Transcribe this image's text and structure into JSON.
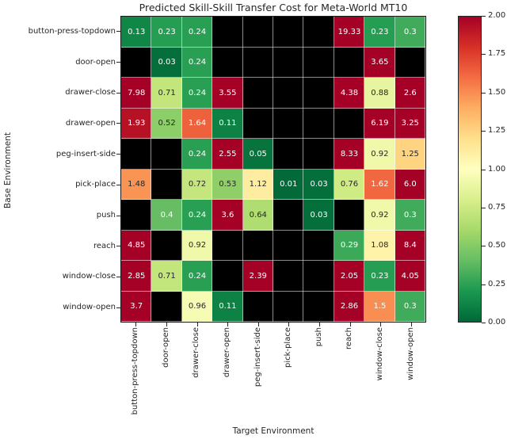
{
  "chart_data": {
    "type": "heatmap",
    "title": "Predicted Skill-Skill Transfer Cost for Meta-World MT10",
    "xlabel": "Target Environment",
    "ylabel": "Base Environment",
    "rows": [
      "button-press-topdown",
      "door-open",
      "drawer-close",
      "drawer-open",
      "peg-insert-side",
      "pick-place",
      "push",
      "reach",
      "window-close",
      "window-open"
    ],
    "columns": [
      "button-press-topdown",
      "door-open",
      "drawer-close",
      "drawer-open",
      "peg-insert-side",
      "pick-place",
      "push",
      "reach",
      "window-close",
      "window-open"
    ],
    "values": [
      [
        0.13,
        0.23,
        0.24,
        null,
        null,
        null,
        null,
        19.33,
        0.23,
        0.3
      ],
      [
        null,
        0.03,
        0.24,
        null,
        null,
        null,
        null,
        null,
        3.65,
        null
      ],
      [
        7.98,
        0.71,
        0.24,
        3.55,
        null,
        null,
        null,
        4.38,
        0.88,
        2.6
      ],
      [
        1.93,
        0.52,
        1.64,
        0.11,
        null,
        null,
        null,
        null,
        6.19,
        3.25
      ],
      [
        null,
        null,
        0.24,
        2.55,
        0.05,
        null,
        null,
        8.33,
        0.92,
        1.25
      ],
      [
        1.48,
        null,
        0.72,
        0.53,
        1.12,
        0.01,
        0.03,
        0.76,
        1.62,
        6.0
      ],
      [
        null,
        0.4,
        0.24,
        3.6,
        0.64,
        null,
        0.03,
        null,
        0.92,
        0.3
      ],
      [
        4.85,
        null,
        0.92,
        null,
        null,
        null,
        null,
        0.29,
        1.08,
        8.4
      ],
      [
        2.85,
        0.71,
        0.24,
        null,
        2.39,
        null,
        null,
        2.05,
        0.23,
        4.05
      ],
      [
        3.7,
        null,
        0.96,
        0.11,
        null,
        null,
        null,
        2.86,
        1.5,
        0.3
      ]
    ],
    "cell_labels": [
      [
        "0.13",
        "0.23",
        "0.24",
        null,
        null,
        null,
        null,
        "19.33",
        "0.23",
        "0.3"
      ],
      [
        null,
        "0.03",
        "0.24",
        null,
        null,
        null,
        null,
        null,
        "3.65",
        null
      ],
      [
        "7.98",
        "0.71",
        "0.24",
        "3.55",
        null,
        null,
        null,
        "4.38",
        "0.88",
        "2.6"
      ],
      [
        "1.93",
        "0.52",
        "1.64",
        "0.11",
        null,
        null,
        null,
        null,
        "6.19",
        "3.25"
      ],
      [
        null,
        null,
        "0.24",
        "2.55",
        "0.05",
        null,
        null,
        "8.33",
        "0.92",
        "1.25"
      ],
      [
        "1.48",
        null,
        "0.72",
        "0.53",
        "1.12",
        "0.01",
        "0.03",
        "0.76",
        "1.62",
        "6.0"
      ],
      [
        null,
        "0.4",
        "0.24",
        "3.6",
        "0.64",
        null,
        "0.03",
        null,
        "0.92",
        "0.3"
      ],
      [
        "4.85",
        null,
        "0.92",
        null,
        null,
        null,
        null,
        "0.29",
        "1.08",
        "8.4"
      ],
      [
        "2.85",
        "0.71",
        "0.24",
        null,
        "2.39",
        null,
        null,
        "2.05",
        "0.23",
        "4.05"
      ],
      [
        "3.7",
        null,
        "0.96",
        "0.11",
        null,
        null,
        null,
        "2.86",
        "1.5",
        "0.3"
      ]
    ],
    "vmin": 0,
    "vmax": 2,
    "colormap": {
      "name": "RdYlGn_r",
      "anchors": [
        "#006837",
        "#1a9850",
        "#66bd63",
        "#a6d96a",
        "#d9ef8b",
        "#ffffbf",
        "#fee08b",
        "#fdae61",
        "#f46d43",
        "#d73027",
        "#a50026"
      ]
    },
    "masked_color": "#000000",
    "annotation_text_colors": {
      "light": "#ffffff",
      "dark": "#262626"
    },
    "colorbar": {
      "position": "right",
      "tick_labels": [
        "0.00",
        "0.25",
        "0.50",
        "0.75",
        "1.00",
        "1.25",
        "1.50",
        "1.75",
        "2.00"
      ],
      "tick_values": [
        0.0,
        0.25,
        0.5,
        0.75,
        1.0,
        1.25,
        1.5,
        1.75,
        2.0
      ]
    },
    "grid": "white lines between cells"
  }
}
